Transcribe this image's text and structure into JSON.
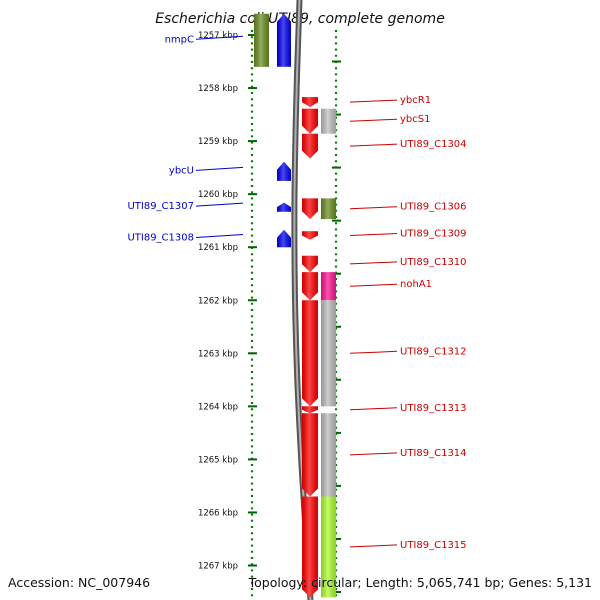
{
  "title": "Escherichia coli UTI89, complete genome",
  "accession_text": "Accession: NC_007946",
  "topology_text": "Topology: circular; Length: 5,065,741 bp; Genes: 5,131",
  "ticks": [
    "1257 kbp",
    "1258 kbp",
    "1259 kbp",
    "1260 kbp",
    "1261 kbp",
    "1262 kbp",
    "1263 kbp",
    "1264 kbp",
    "1265 kbp",
    "1266 kbp",
    "1267 kbp"
  ],
  "genes": [
    {
      "name": "nmpC",
      "strand": "reverse",
      "start_kbp": 1256.6,
      "end_kbp": 1257.6,
      "color": "#0000ee"
    },
    {
      "name": "ybcU",
      "strand": "reverse",
      "start_kbp": 1259.39,
      "end_kbp": 1259.75,
      "color": "#0000ee"
    },
    {
      "name": "UTI89_C1307",
      "strand": "reverse",
      "start_kbp": 1260.16,
      "end_kbp": 1260.33,
      "color": "#0000ee"
    },
    {
      "name": "UTI89_C1308",
      "strand": "reverse",
      "start_kbp": 1260.67,
      "end_kbp": 1261.0,
      "color": "#0000ee"
    },
    {
      "name": "ybcR1",
      "strand": "forward",
      "start_kbp": 1258.17,
      "end_kbp": 1258.36,
      "color": "#ff0000"
    },
    {
      "name": "ybcS1",
      "strand": "forward",
      "start_kbp": 1258.39,
      "end_kbp": 1258.86,
      "color": "#ff0000"
    },
    {
      "name": "UTI89_C1304",
      "strand": "forward",
      "start_kbp": 1258.86,
      "end_kbp": 1259.33,
      "color": "#ff0000"
    },
    {
      "name": "UTI89_C1306",
      "strand": "forward",
      "start_kbp": 1260.08,
      "end_kbp": 1260.47,
      "color": "#ff0000"
    },
    {
      "name": "UTI89_C1309",
      "strand": "forward",
      "start_kbp": 1260.7,
      "end_kbp": 1260.86,
      "color": "#ff0000"
    },
    {
      "name": "UTI89_C1310",
      "strand": "forward",
      "start_kbp": 1261.16,
      "end_kbp": 1261.47,
      "color": "#ff0000"
    },
    {
      "name": "nohA1",
      "strand": "forward",
      "start_kbp": 1261.47,
      "end_kbp": 1262.0,
      "color": "#ff0000"
    },
    {
      "name": "UTI89_C1312",
      "strand": "forward",
      "start_kbp": 1262.0,
      "end_kbp": 1264.0,
      "color": "#ff0000"
    },
    {
      "name": "UTI89_C1313",
      "strand": "forward",
      "start_kbp": 1264.0,
      "end_kbp": 1264.13,
      "color": "#ff0000"
    },
    {
      "name": "UTI89_C1314",
      "strand": "forward",
      "start_kbp": 1264.13,
      "end_kbp": 1265.7,
      "color": "#ff0000"
    },
    {
      "name": "UTI89_C1315",
      "strand": "forward",
      "start_kbp": 1265.7,
      "end_kbp": 1267.6,
      "color": "#ff0000"
    }
  ],
  "features": [
    {
      "start_kbp": 1256.6,
      "end_kbp": 1257.6,
      "track": "reverse",
      "color": "#6b8e23"
    },
    {
      "start_kbp": 1258.39,
      "end_kbp": 1258.86,
      "track": "forward",
      "color": "#c0c0c0"
    },
    {
      "start_kbp": 1260.08,
      "end_kbp": 1260.47,
      "track": "forward",
      "color": "#6b8e23"
    },
    {
      "start_kbp": 1261.47,
      "end_kbp": 1262.0,
      "track": "forward",
      "color": "#ff1493"
    },
    {
      "start_kbp": 1262.0,
      "end_kbp": 1264.0,
      "track": "forward",
      "color": "#bdbdbd"
    },
    {
      "start_kbp": 1264.13,
      "end_kbp": 1265.7,
      "track": "forward",
      "color": "#bdbdbd"
    },
    {
      "start_kbp": 1265.7,
      "end_kbp": 1267.6,
      "track": "forward",
      "color": "#adff2f"
    }
  ]
}
